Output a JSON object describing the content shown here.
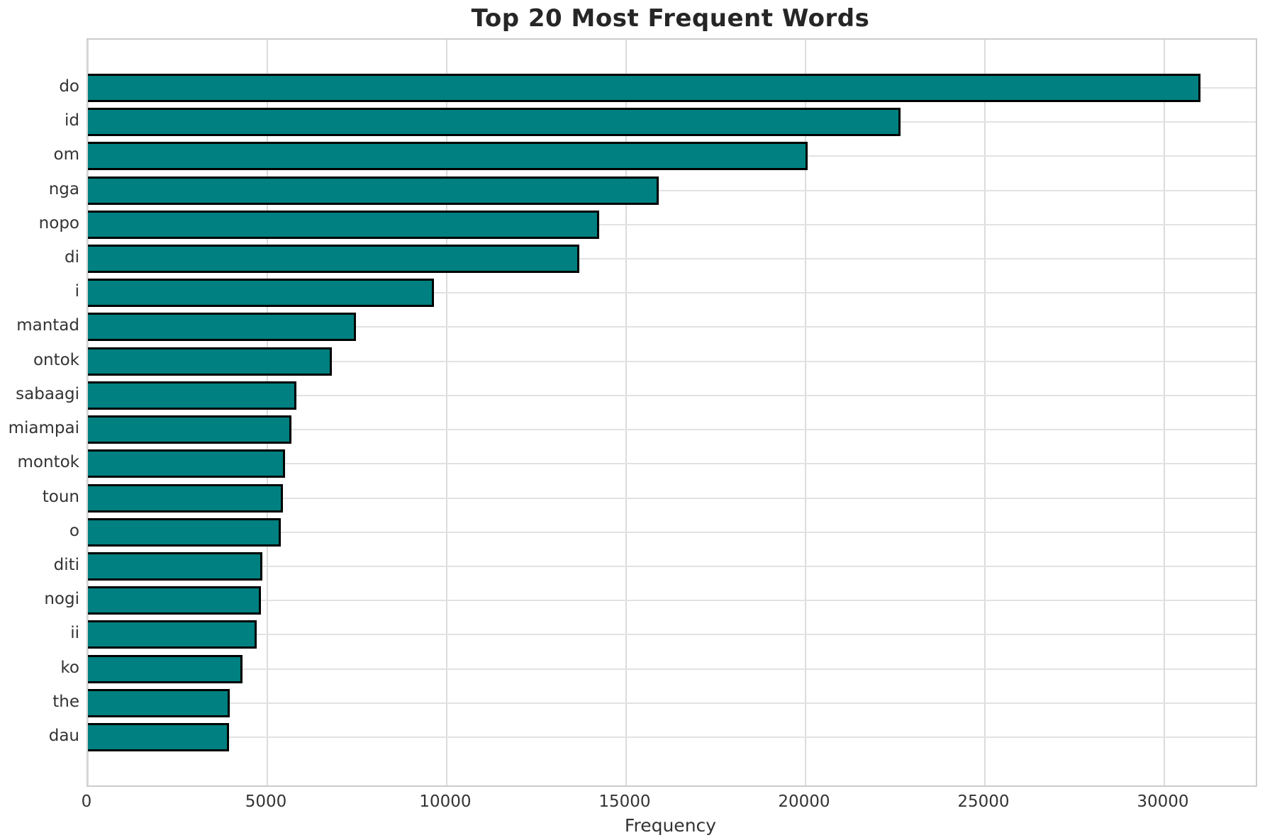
{
  "chart_data": {
    "type": "bar",
    "orientation": "horizontal",
    "title": "Top 20 Most Frequent Words",
    "xlabel": "Frequency",
    "ylabel": "",
    "categories": [
      "do",
      "id",
      "om",
      "nga",
      "nopo",
      "di",
      "i",
      "mantad",
      "ontok",
      "sabaagi",
      "miampai",
      "montok",
      "toun",
      "o",
      "diti",
      "nogi",
      "ii",
      "ko",
      "the",
      "dau"
    ],
    "values": [
      31000,
      22650,
      20050,
      15900,
      14250,
      13700,
      9650,
      7470,
      6800,
      5810,
      5680,
      5500,
      5440,
      5370,
      4870,
      4830,
      4710,
      4300,
      3950,
      3940
    ],
    "xticks": [
      0,
      5000,
      10000,
      15000,
      20000,
      25000,
      30000
    ],
    "xlim": [
      0,
      32550
    ],
    "grid": true,
    "legend": false,
    "colors": {
      "bar_fill": "#008080",
      "bar_edge": "#000000",
      "grid_line": "#dcdcdc",
      "spine": "#cccccc",
      "title_text": "#262626",
      "tick_text": "#333333",
      "background": "#ffffff"
    }
  }
}
